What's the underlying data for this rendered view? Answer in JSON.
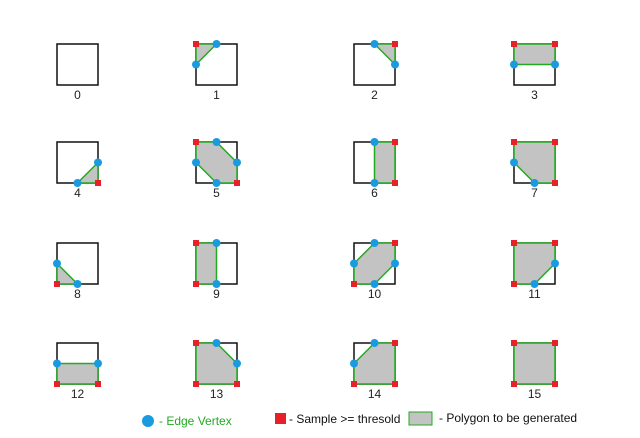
{
  "cases": [
    {
      "label": "0",
      "corners": []
    },
    {
      "label": "1",
      "corners": [
        "tl"
      ]
    },
    {
      "label": "2",
      "corners": [
        "tr"
      ]
    },
    {
      "label": "3",
      "corners": [
        "tl",
        "tr"
      ]
    },
    {
      "label": "4",
      "corners": [
        "br"
      ]
    },
    {
      "label": "5",
      "corners": [
        "tl",
        "br"
      ]
    },
    {
      "label": "6",
      "corners": [
        "tr",
        "br"
      ]
    },
    {
      "label": "7",
      "corners": [
        "tl",
        "tr",
        "br"
      ]
    },
    {
      "label": "8",
      "corners": [
        "bl"
      ]
    },
    {
      "label": "9",
      "corners": [
        "tl",
        "bl"
      ]
    },
    {
      "label": "10",
      "corners": [
        "tr",
        "bl"
      ]
    },
    {
      "label": "11",
      "corners": [
        "tl",
        "tr",
        "bl"
      ]
    },
    {
      "label": "12",
      "corners": [
        "br",
        "bl"
      ]
    },
    {
      "label": "13",
      "corners": [
        "tl",
        "br",
        "bl"
      ]
    },
    {
      "label": "14",
      "corners": [
        "tr",
        "br",
        "bl"
      ]
    },
    {
      "label": "15",
      "corners": [
        "tl",
        "tr",
        "br",
        "bl"
      ]
    }
  ],
  "legend": {
    "edge_vertex": "- Edge Vertex",
    "sample": "- Sample >= thresold",
    "polygon": "- Polygon to be generated"
  },
  "colors": {
    "edge_vertex": "#1a9be0",
    "sample": "#e8202a",
    "polygon_fill": "#c3c3c3",
    "polygon_stroke": "#22aa22",
    "edge_vertex_text": "#22aa22"
  }
}
